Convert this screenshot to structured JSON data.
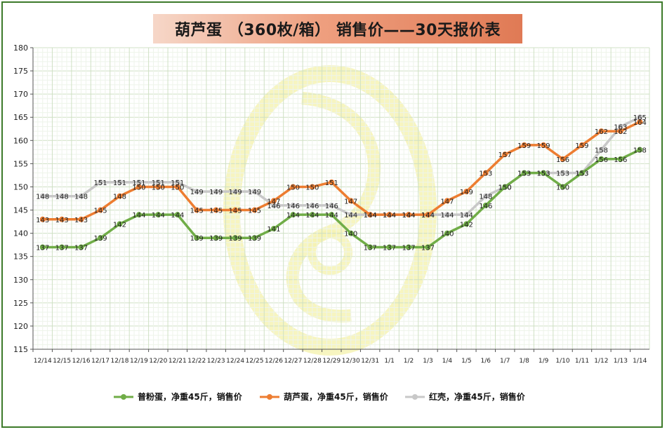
{
  "chart_data": {
    "type": "line",
    "title": "葫芦蛋 （360枚/箱） 销售价——30天报价表",
    "categories": [
      "12/14",
      "12/15",
      "12/16",
      "12/17",
      "12/18",
      "12/19",
      "12/20",
      "12/21",
      "12/22",
      "12/23",
      "12/24",
      "12/25",
      "12/26",
      "12/27",
      "12/28",
      "12/29",
      "12/30",
      "12/31",
      "1/1",
      "1/2",
      "1/3",
      "1/4",
      "1/5",
      "1/6",
      "1/7",
      "1/8",
      "1/9",
      "1/10",
      "1/11",
      "1/12",
      "1/13",
      "1/14"
    ],
    "ylim": [
      115,
      180
    ],
    "yticks": [
      115,
      120,
      125,
      130,
      135,
      140,
      145,
      150,
      155,
      160,
      165,
      170,
      175,
      180
    ],
    "grid": true,
    "legend_position": "bottom",
    "series": [
      {
        "name": "普粉蛋，净重45斤，销售价",
        "color": "#70ad47",
        "values": [
          137,
          137,
          137,
          139,
          142,
          144,
          144,
          144,
          139,
          139,
          139,
          139,
          141,
          144,
          144,
          144,
          140,
          137,
          137,
          137,
          137,
          140,
          142,
          146,
          150,
          153,
          153,
          150,
          153,
          156,
          156,
          158
        ]
      },
      {
        "name": "葫芦蛋，净重45斤，销售价",
        "color": "#ed7d31",
        "values": [
          143,
          143,
          143,
          145,
          148,
          150,
          150,
          150,
          145,
          145,
          145,
          145,
          147,
          150,
          150,
          151,
          147,
          144,
          144,
          144,
          144,
          147,
          149,
          153,
          157,
          159,
          159,
          156,
          159,
          162,
          162,
          164
        ]
      },
      {
        "name": "红壳，净重45斤，销售价",
        "color": "#c8c8c8",
        "values": [
          148,
          148,
          148,
          151,
          151,
          151,
          151,
          151,
          149,
          149,
          149,
          149,
          146,
          146,
          146,
          146,
          144,
          144,
          144,
          144,
          144,
          144,
          144,
          148,
          150,
          153,
          153,
          153,
          153,
          158,
          163,
          165
        ]
      }
    ]
  }
}
